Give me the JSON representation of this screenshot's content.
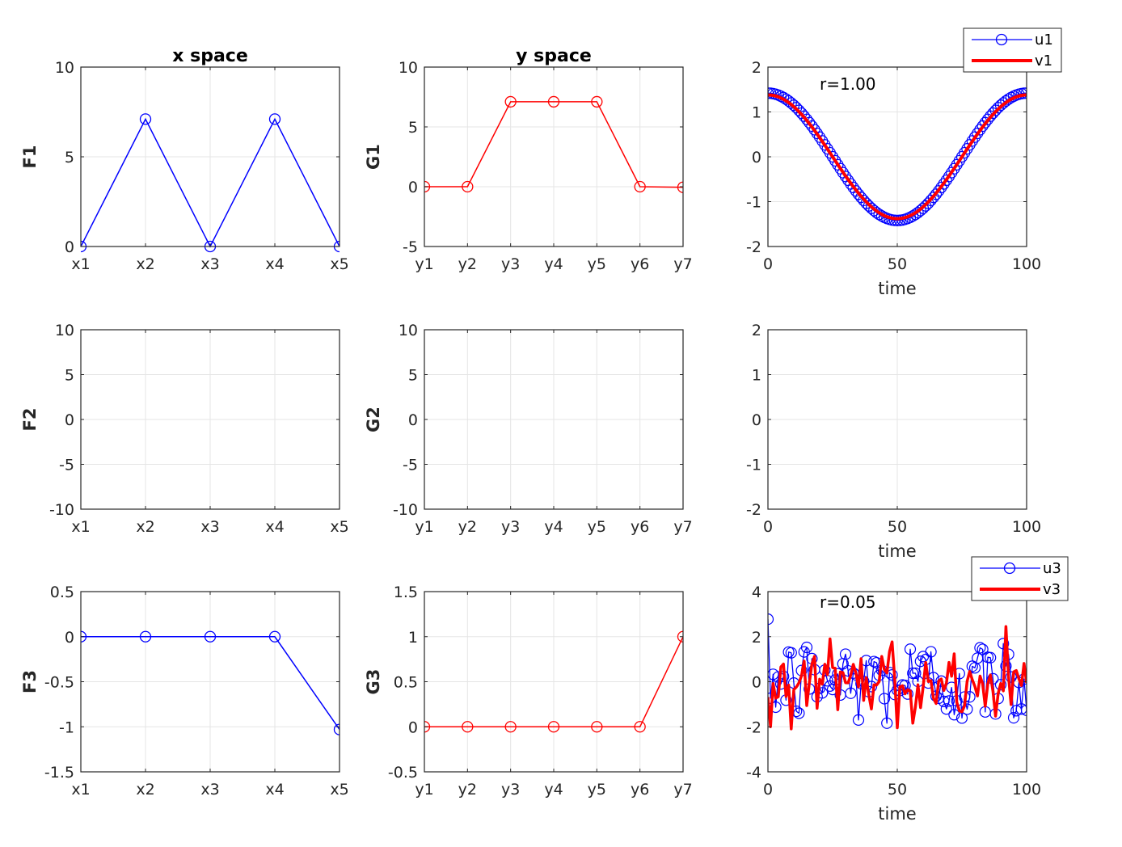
{
  "colors": {
    "blue": "#0000ff",
    "red": "#ff0000",
    "grid": "#e5e5e5",
    "axis": "#262626"
  },
  "chart_data": [
    {
      "id": "p11",
      "type": "line",
      "title": "x space",
      "ylabel": "F1",
      "xlabel": "",
      "categories": [
        "x1",
        "x2",
        "x3",
        "x4",
        "x5"
      ],
      "ylim": [
        0,
        10
      ],
      "yticks": [
        "0",
        "5",
        "10"
      ],
      "grid": true,
      "marker": "circle",
      "color": "blue",
      "series": [
        {
          "values": [
            0,
            7.1,
            0,
            7.1,
            0
          ]
        }
      ]
    },
    {
      "id": "p12",
      "type": "line",
      "title": "y space",
      "ylabel": "G1",
      "xlabel": "",
      "categories": [
        "y1",
        "y2",
        "y3",
        "y4",
        "y5",
        "y6",
        "y7"
      ],
      "ylim": [
        -5,
        10
      ],
      "yticks": [
        "-5",
        "0",
        "5",
        "10"
      ],
      "grid": true,
      "marker": "circle",
      "color": "red",
      "series": [
        {
          "values": [
            0,
            0,
            7.1,
            7.1,
            7.1,
            0,
            -0.05
          ]
        }
      ]
    },
    {
      "id": "p13",
      "type": "line",
      "title": "",
      "ylabel": "",
      "xlabel": "time",
      "xlim": [
        0,
        100
      ],
      "xticks": [
        "0",
        "50",
        "100"
      ],
      "ylim": [
        -2,
        2
      ],
      "yticks": [
        "-2",
        "-1",
        "0",
        "1",
        "2"
      ],
      "grid": true,
      "annotation": "r=1.00",
      "legend_position": "top-right",
      "series": [
        {
          "name": "u1",
          "color": "blue",
          "marker": "circle",
          "kind": "cosine",
          "amplitude": 1.42,
          "points": 101
        },
        {
          "name": "v1",
          "color": "red",
          "kind": "cosine",
          "amplitude": 1.38,
          "points": 101
        }
      ]
    },
    {
      "id": "p21",
      "type": "line",
      "title": "",
      "ylabel": "F2",
      "xlabel": "",
      "categories": [
        "x1",
        "x2",
        "x3",
        "x4",
        "x5"
      ],
      "ylim": [
        -10,
        10
      ],
      "yticks": [
        "-10",
        "-5",
        "0",
        "5",
        "10"
      ],
      "grid": true,
      "series": []
    },
    {
      "id": "p22",
      "type": "line",
      "title": "",
      "ylabel": "G2",
      "xlabel": "",
      "categories": [
        "y1",
        "y2",
        "y3",
        "y4",
        "y5",
        "y6",
        "y7"
      ],
      "ylim": [
        -10,
        10
      ],
      "yticks": [
        "-10",
        "-5",
        "0",
        "5",
        "10"
      ],
      "grid": true,
      "series": []
    },
    {
      "id": "p23",
      "type": "line",
      "title": "",
      "ylabel": "",
      "xlabel": "time",
      "xlim": [
        0,
        100
      ],
      "xticks": [
        "0",
        "50",
        "100"
      ],
      "ylim": [
        -2,
        2
      ],
      "yticks": [
        "-2",
        "-1",
        "0",
        "1",
        "2"
      ],
      "grid": true,
      "series": []
    },
    {
      "id": "p31",
      "type": "line",
      "title": "",
      "ylabel": "F3",
      "xlabel": "",
      "categories": [
        "x1",
        "x2",
        "x3",
        "x4",
        "x5"
      ],
      "ylim": [
        -1.5,
        0.5
      ],
      "yticks": [
        "-1.5",
        "-1",
        "-0.5",
        "0",
        "0.5"
      ],
      "grid": true,
      "marker": "circle",
      "color": "blue",
      "series": [
        {
          "values": [
            0,
            0,
            0,
            0,
            -1.03
          ]
        }
      ]
    },
    {
      "id": "p32",
      "type": "line",
      "title": "",
      "ylabel": "G3",
      "xlabel": "",
      "categories": [
        "y1",
        "y2",
        "y3",
        "y4",
        "y5",
        "y6",
        "y7"
      ],
      "ylim": [
        -0.5,
        1.5
      ],
      "yticks": [
        "-0.5",
        "0",
        "0.5",
        "1",
        "1.5"
      ],
      "grid": true,
      "marker": "circle",
      "color": "red",
      "series": [
        {
          "values": [
            0,
            0,
            0,
            0,
            0,
            0,
            1
          ]
        }
      ]
    },
    {
      "id": "p33",
      "type": "line",
      "title": "",
      "ylabel": "",
      "xlabel": "time",
      "xlim": [
        0,
        100
      ],
      "xticks": [
        "0",
        "50",
        "100"
      ],
      "ylim": [
        -4,
        4
      ],
      "yticks": [
        "-4",
        "-2",
        "0",
        "2",
        "4"
      ],
      "grid": true,
      "annotation": "r=0.05",
      "legend_position": "top-right",
      "series": [
        {
          "name": "u3",
          "color": "blue",
          "marker": "circle",
          "kind": "noise",
          "std": 1.0,
          "points": 101
        },
        {
          "name": "v3",
          "color": "red",
          "kind": "noise",
          "std": 0.9,
          "points": 101
        }
      ]
    }
  ]
}
